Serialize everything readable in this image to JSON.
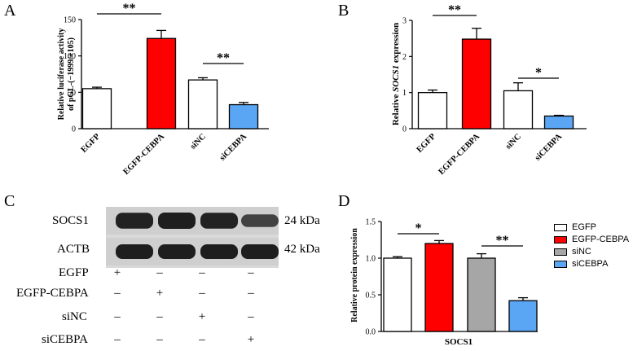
{
  "chart_data": [
    {
      "panel": "A",
      "type": "bar",
      "categories": [
        "EGFP",
        "EGFP-CEBPA",
        "siNC",
        "siCEBPA"
      ],
      "values": [
        55,
        124,
        67,
        33
      ],
      "errors": [
        2,
        11,
        3,
        3
      ],
      "ylabel_line1": "Relative luciferase activity",
      "ylabel_line2": "of pGL-(−1999/+105)",
      "ylim": [
        0,
        150
      ],
      "yticks": [
        "0",
        "50",
        "100",
        "150"
      ],
      "ytick_values": [
        0,
        50,
        100,
        150
      ],
      "significance": [
        {
          "from": 0,
          "to": 1,
          "label": "**"
        },
        {
          "from": 2,
          "to": 3,
          "label": "**"
        }
      ]
    },
    {
      "panel": "B",
      "type": "bar",
      "categories": [
        "EGFP",
        "EGFP-CEBPA",
        "siNC",
        "siCEBPA"
      ],
      "values": [
        1.0,
        2.48,
        1.05,
        0.35
      ],
      "errors": [
        0.07,
        0.3,
        0.22,
        0.02
      ],
      "ylabel_prefix": "Relative ",
      "ylabel_gene": "SOCS1",
      "ylabel_suffix": " expression",
      "ylim": [
        0,
        3
      ],
      "yticks": [
        "0",
        "1",
        "2",
        "3"
      ],
      "ytick_values": [
        0,
        1,
        2,
        3
      ],
      "significance": [
        {
          "from": 0,
          "to": 1,
          "label": "**"
        },
        {
          "from": 2,
          "to": 3,
          "label": "*"
        }
      ]
    },
    {
      "panel": "D",
      "type": "bar",
      "categories": [
        "EGFP",
        "EGFP-CEBPA",
        "siNC",
        "siCEBPA"
      ],
      "values": [
        1.0,
        1.2,
        1.0,
        0.42
      ],
      "errors": [
        0.02,
        0.04,
        0.06,
        0.04
      ],
      "ylabel": "Relative protein expression",
      "xlabel": "SOCS1",
      "ylim": [
        0,
        1.5
      ],
      "yticks": [
        "0.0",
        "0.5",
        "1.0",
        "1.5"
      ],
      "ytick_values": [
        0,
        0.5,
        1.0,
        1.5
      ],
      "legend": [
        "EGFP",
        "EGFP-CEBPA",
        "siNC",
        "siCEBPA"
      ],
      "legend_position": "right",
      "significance": [
        {
          "from": 0,
          "to": 1,
          "label": "*"
        },
        {
          "from": 2,
          "to": 3,
          "label": "**"
        }
      ]
    }
  ],
  "panels": {
    "a_letter": "A",
    "b_letter": "B",
    "c_letter": "C",
    "d_letter": "D"
  },
  "colors": {
    "egfp": "#ffffff",
    "egfp_cebpa": "#ff0000",
    "sinc_ab": "#ffffff",
    "sinc_d": "#a6a6a6",
    "sicebpa": "#5aa6f5"
  },
  "western_blot": {
    "rows": [
      {
        "label": "SOCS1",
        "size": "24 kDa"
      },
      {
        "label": "ACTB",
        "size": "42 kDa"
      }
    ],
    "conditions": [
      {
        "label": "EGFP",
        "signs": [
          "+",
          "–",
          "–",
          "–"
        ]
      },
      {
        "label": "EGFP-CEBPA",
        "signs": [
          "–",
          "+",
          "–",
          "–"
        ]
      },
      {
        "label": "siNC",
        "signs": [
          "–",
          "–",
          "+",
          "–"
        ]
      },
      {
        "label": "siCEBPA",
        "signs": [
          "–",
          "–",
          "–",
          "+"
        ]
      }
    ],
    "socs1_intensity": [
      0.95,
      1.0,
      0.95,
      0.55
    ]
  }
}
